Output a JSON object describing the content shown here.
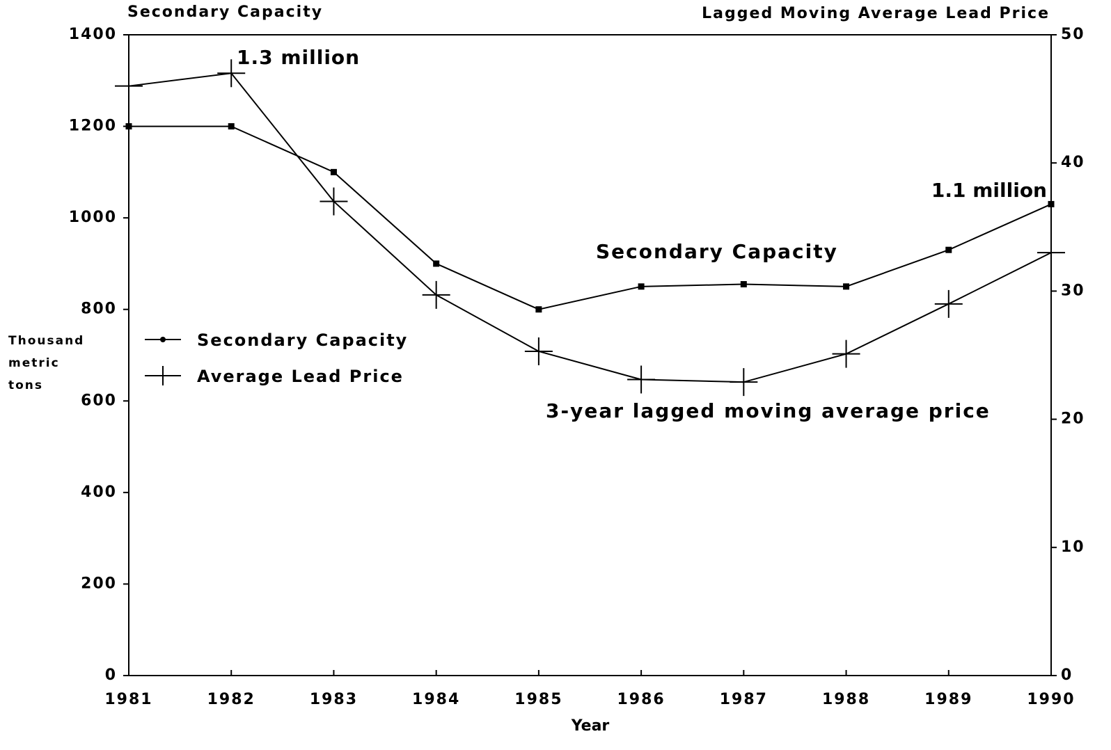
{
  "chart_data": {
    "type": "line",
    "title": "Secondary Capacity",
    "y2_title": "Lagged Moving Average Lead Price",
    "y_label": "Thousand metric tons",
    "x_label": "Year",
    "x": [
      1981,
      1982,
      1983,
      1984,
      1985,
      1986,
      1987,
      1988,
      1989,
      1990
    ],
    "xlim": [
      1981,
      1990
    ],
    "xticks": [
      1981,
      1982,
      1983,
      1984,
      1985,
      1986,
      1987,
      1988,
      1989,
      1990
    ],
    "ylim": [
      0,
      1400
    ],
    "yticks": [
      0,
      200,
      400,
      600,
      800,
      1000,
      1200,
      1400
    ],
    "y2lim": [
      0,
      50
    ],
    "y2ticks": [
      0,
      10,
      20,
      30,
      40,
      50
    ],
    "legend": "left",
    "series": [
      {
        "name": "Secondary Capacity",
        "color": "#000000",
        "marker": "square",
        "values": [
          1200,
          1200,
          1100,
          900,
          800,
          850,
          855,
          850,
          930,
          1030
        ]
      },
      {
        "name": "Average Lead Price",
        "color": "#000000",
        "marker": "plus",
        "axis": "y2",
        "values": [
          46,
          47,
          37,
          29.7,
          25.3,
          23.1,
          22.9,
          25.1,
          29,
          33
        ]
      }
    ],
    "annotations": [
      "1.3 million",
      "1.1 million",
      "Secondary Capacity",
      "3-year lagged moving average price"
    ]
  }
}
